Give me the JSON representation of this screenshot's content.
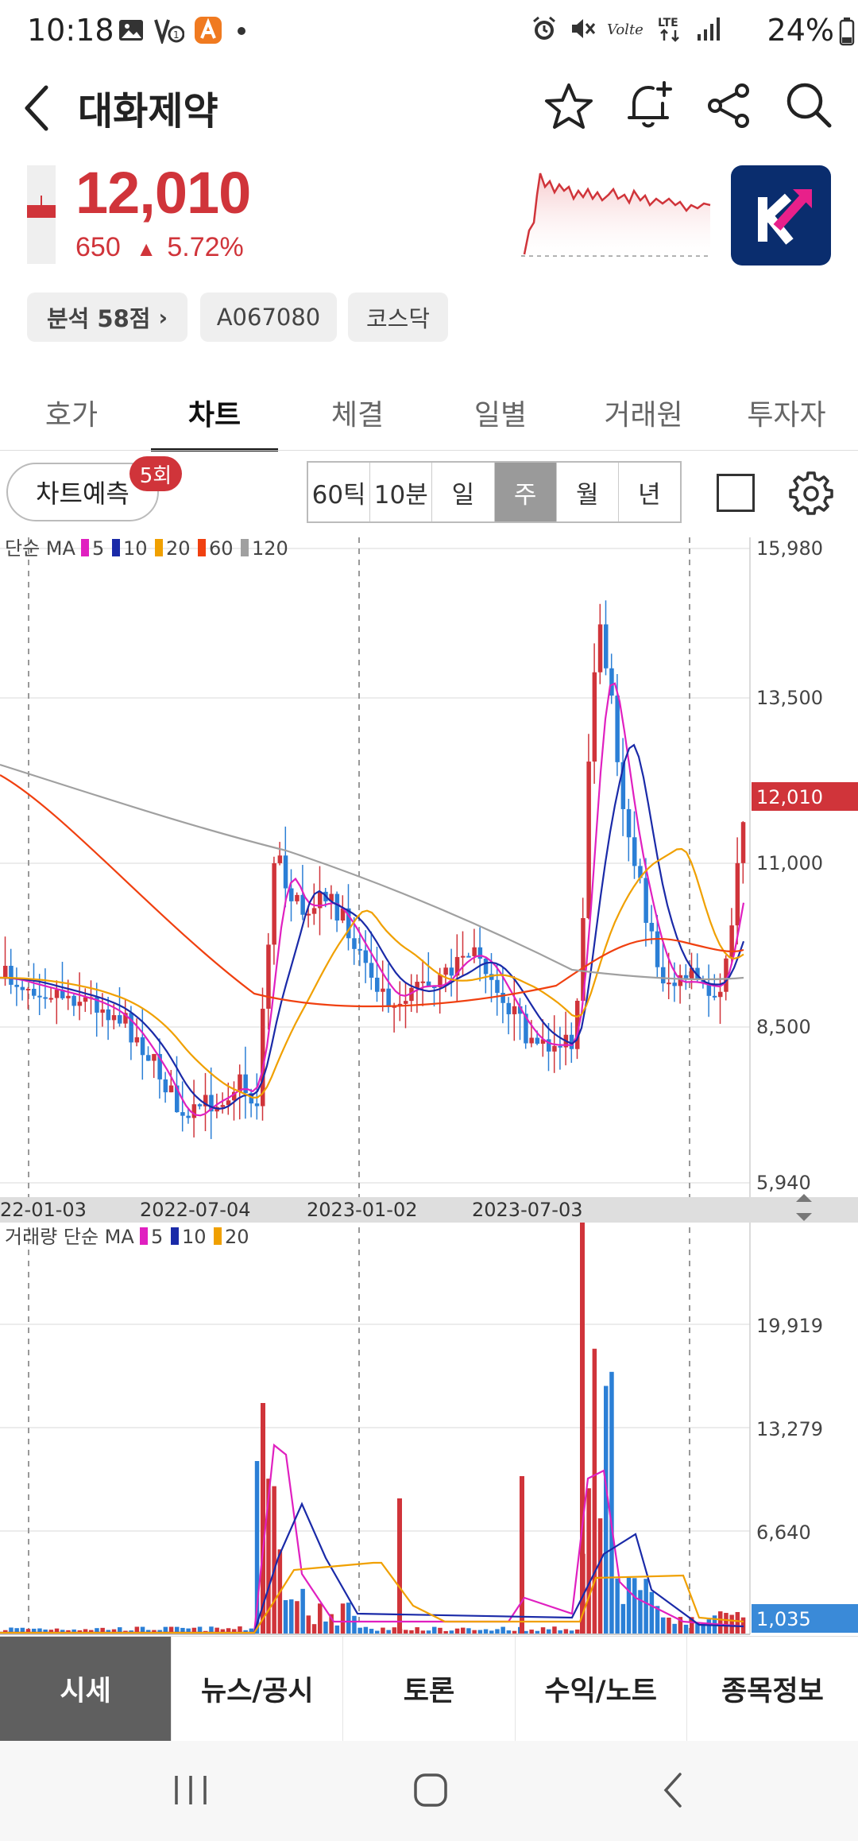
{
  "status": {
    "time": "10:18",
    "battery": "24%",
    "left_icons": [
      "gallery-icon",
      "voltealert-icon",
      "app-icon",
      "dot-icon"
    ],
    "right_icons": [
      "alarm-icon",
      "mute-icon",
      "volte-icon",
      "lte-icon",
      "signal-icon",
      "battery-icon"
    ]
  },
  "header": {
    "title": "대화제약",
    "icons": [
      "back-icon",
      "star-icon",
      "bell-plus-icon",
      "share-icon",
      "search-icon"
    ]
  },
  "quote": {
    "price": "12,010",
    "change": "650",
    "change_pct": "5.72%",
    "color_up": "#d0343a"
  },
  "tags": {
    "analysis": "분석 58점",
    "code": "A067080",
    "market": "코스닥"
  },
  "tabs": [
    {
      "label": "호가",
      "active": false
    },
    {
      "label": "차트",
      "active": true
    },
    {
      "label": "체결",
      "active": false
    },
    {
      "label": "일별",
      "active": false
    },
    {
      "label": "거래원",
      "active": false
    },
    {
      "label": "투자자",
      "active": false
    }
  ],
  "toolbar": {
    "predict_label": "차트예측",
    "predict_badge": "5회",
    "periods": [
      {
        "label": "60틱",
        "active": false
      },
      {
        "label": "10분",
        "active": false
      },
      {
        "label": "일",
        "active": false
      },
      {
        "label": "주",
        "active": true
      },
      {
        "label": "월",
        "active": false
      },
      {
        "label": "년",
        "active": false
      }
    ]
  },
  "chart": {
    "legend_prefix": "단순 MA",
    "ma": [
      {
        "period": "5",
        "color": "#e020c0"
      },
      {
        "period": "10",
        "color": "#1a2aa8"
      },
      {
        "period": "20",
        "color": "#f0a000"
      },
      {
        "period": "60",
        "color": "#f04010"
      },
      {
        "period": "120",
        "color": "#a0a0a0"
      }
    ],
    "y_labels": [
      "15,980",
      "13,500",
      "11,000",
      "8,500",
      "5,940"
    ],
    "current_price_label": "12,010",
    "x_labels": [
      "22-01-03",
      "2022-07-04",
      "2023-01-02",
      "2023-07-03"
    ],
    "volume_legend_prefix": "거래량 단순 MA",
    "volume_ma": [
      {
        "period": "5",
        "color": "#e020c0"
      },
      {
        "period": "10",
        "color": "#1a2aa8"
      },
      {
        "period": "20",
        "color": "#f0a000"
      }
    ],
    "volume_y_labels": [
      "19,919",
      "13,279",
      "6,640"
    ],
    "current_volume_label": "1,035"
  },
  "bottom_nav": [
    {
      "label": "시세",
      "active": true
    },
    {
      "label": "뉴스/공시",
      "active": false
    },
    {
      "label": "토론",
      "active": false
    },
    {
      "label": "수익/노트",
      "active": false
    },
    {
      "label": "종목정보",
      "active": false
    }
  ]
}
